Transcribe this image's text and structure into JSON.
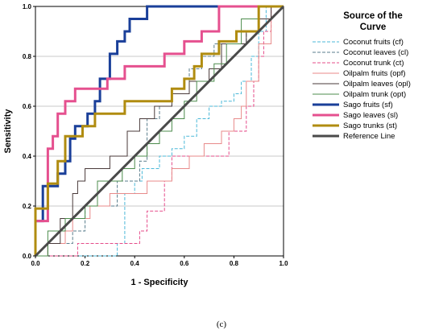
{
  "chart_data": {
    "type": "line",
    "xlabel": "1 - Specificity",
    "ylabel": "Sensitivity",
    "xlim": [
      0,
      1
    ],
    "ylim": [
      0,
      1
    ],
    "xticks": [
      "0.0",
      "0.2",
      "0.4",
      "0.6",
      "0.8",
      "1.0"
    ],
    "yticks": [
      "0.0",
      "0.2",
      "0.4",
      "0.6",
      "0.8",
      "1.0"
    ],
    "grid": "horizontal",
    "legend_title": "Source of the Curve",
    "legend_placement": "right",
    "caption": "(c)",
    "series": [
      {
        "name": "Coconut fruits (cf)",
        "color": "#4bb8d8",
        "style": "dashed",
        "width": "thin",
        "points": [
          [
            0,
            0
          ],
          [
            0.33,
            0
          ],
          [
            0.33,
            0.05
          ],
          [
            0.36,
            0.05
          ],
          [
            0.36,
            0.25
          ],
          [
            0.4,
            0.25
          ],
          [
            0.4,
            0.3
          ],
          [
            0.43,
            0.3
          ],
          [
            0.43,
            0.35
          ],
          [
            0.5,
            0.35
          ],
          [
            0.5,
            0.4
          ],
          [
            0.55,
            0.4
          ],
          [
            0.55,
            0.43
          ],
          [
            0.6,
            0.43
          ],
          [
            0.6,
            0.48
          ],
          [
            0.65,
            0.48
          ],
          [
            0.65,
            0.55
          ],
          [
            0.7,
            0.55
          ],
          [
            0.7,
            0.6
          ],
          [
            0.75,
            0.6
          ],
          [
            0.75,
            0.62
          ],
          [
            0.8,
            0.62
          ],
          [
            0.8,
            0.65
          ],
          [
            0.83,
            0.65
          ],
          [
            0.83,
            0.7
          ],
          [
            0.87,
            0.7
          ],
          [
            0.87,
            0.8
          ],
          [
            0.9,
            0.8
          ],
          [
            0.9,
            0.9
          ],
          [
            0.93,
            0.9
          ],
          [
            0.93,
            1
          ],
          [
            1,
            1
          ]
        ]
      },
      {
        "name": "Coconut leaves (cl)",
        "color": "#5a7d8c",
        "style": "dashed",
        "width": "thin",
        "points": [
          [
            0,
            0
          ],
          [
            0.05,
            0
          ],
          [
            0.05,
            0.05
          ],
          [
            0.15,
            0.05
          ],
          [
            0.15,
            0.1
          ],
          [
            0.2,
            0.1
          ],
          [
            0.2,
            0.2
          ],
          [
            0.33,
            0.2
          ],
          [
            0.33,
            0.3
          ],
          [
            0.42,
            0.3
          ],
          [
            0.42,
            0.38
          ],
          [
            0.45,
            0.38
          ],
          [
            0.45,
            0.55
          ],
          [
            0.5,
            0.55
          ],
          [
            0.5,
            0.6
          ],
          [
            0.55,
            0.6
          ],
          [
            0.55,
            0.65
          ],
          [
            0.62,
            0.65
          ],
          [
            0.62,
            0.75
          ],
          [
            0.67,
            0.75
          ],
          [
            0.67,
            0.8
          ],
          [
            0.72,
            0.8
          ],
          [
            0.72,
            0.85
          ],
          [
            0.85,
            0.85
          ],
          [
            0.85,
            0.9
          ],
          [
            0.9,
            0.9
          ],
          [
            0.9,
            0.95
          ],
          [
            0.95,
            0.95
          ],
          [
            0.95,
            1
          ],
          [
            1,
            1
          ]
        ]
      },
      {
        "name": "Coconut trunk (ct)",
        "color": "#e54c8a",
        "style": "dashed",
        "width": "thin",
        "points": [
          [
            0,
            0
          ],
          [
            0.17,
            0
          ],
          [
            0.17,
            0.05
          ],
          [
            0.42,
            0.05
          ],
          [
            0.42,
            0.1
          ],
          [
            0.45,
            0.1
          ],
          [
            0.45,
            0.18
          ],
          [
            0.52,
            0.18
          ],
          [
            0.52,
            0.3
          ],
          [
            0.55,
            0.3
          ],
          [
            0.55,
            0.4
          ],
          [
            0.78,
            0.4
          ],
          [
            0.78,
            0.5
          ],
          [
            0.85,
            0.5
          ],
          [
            0.85,
            0.6
          ],
          [
            0.88,
            0.6
          ],
          [
            0.88,
            0.7
          ],
          [
            0.9,
            0.7
          ],
          [
            0.9,
            0.8
          ],
          [
            0.92,
            0.8
          ],
          [
            0.92,
            0.9
          ],
          [
            0.95,
            0.9
          ],
          [
            0.95,
            1
          ],
          [
            1,
            1
          ]
        ]
      },
      {
        "name": "Oilpalm fruits (opf)",
        "color": "#e88a8a",
        "style": "solid",
        "width": "thin",
        "points": [
          [
            0,
            0
          ],
          [
            0.05,
            0
          ],
          [
            0.05,
            0.05
          ],
          [
            0.12,
            0.05
          ],
          [
            0.12,
            0.1
          ],
          [
            0.15,
            0.1
          ],
          [
            0.15,
            0.15
          ],
          [
            0.22,
            0.15
          ],
          [
            0.22,
            0.2
          ],
          [
            0.3,
            0.2
          ],
          [
            0.3,
            0.25
          ],
          [
            0.45,
            0.25
          ],
          [
            0.45,
            0.3
          ],
          [
            0.55,
            0.3
          ],
          [
            0.55,
            0.35
          ],
          [
            0.62,
            0.35
          ],
          [
            0.62,
            0.4
          ],
          [
            0.68,
            0.4
          ],
          [
            0.68,
            0.45
          ],
          [
            0.75,
            0.45
          ],
          [
            0.75,
            0.5
          ],
          [
            0.8,
            0.5
          ],
          [
            0.8,
            0.55
          ],
          [
            0.83,
            0.55
          ],
          [
            0.83,
            0.6
          ],
          [
            0.85,
            0.6
          ],
          [
            0.85,
            0.7
          ],
          [
            0.9,
            0.7
          ],
          [
            0.9,
            0.85
          ],
          [
            0.95,
            0.85
          ],
          [
            0.95,
            1
          ],
          [
            1,
            1
          ]
        ]
      },
      {
        "name": "Oilpalm leaves (opl)",
        "color": "#4a3a3a",
        "style": "solid",
        "width": "thin",
        "points": [
          [
            0,
            0
          ],
          [
            0.05,
            0
          ],
          [
            0.05,
            0.05
          ],
          [
            0.1,
            0.05
          ],
          [
            0.1,
            0.15
          ],
          [
            0.15,
            0.15
          ],
          [
            0.15,
            0.25
          ],
          [
            0.17,
            0.25
          ],
          [
            0.17,
            0.3
          ],
          [
            0.2,
            0.3
          ],
          [
            0.2,
            0.35
          ],
          [
            0.3,
            0.35
          ],
          [
            0.3,
            0.4
          ],
          [
            0.37,
            0.4
          ],
          [
            0.37,
            0.5
          ],
          [
            0.42,
            0.5
          ],
          [
            0.42,
            0.55
          ],
          [
            0.48,
            0.55
          ],
          [
            0.48,
            0.6
          ],
          [
            0.55,
            0.6
          ],
          [
            0.55,
            0.65
          ],
          [
            0.62,
            0.65
          ],
          [
            0.62,
            0.7
          ],
          [
            0.7,
            0.7
          ],
          [
            0.7,
            0.75
          ],
          [
            0.75,
            0.75
          ],
          [
            0.75,
            0.85
          ],
          [
            0.85,
            0.85
          ],
          [
            0.85,
            0.9
          ],
          [
            0.9,
            0.9
          ],
          [
            0.9,
            0.95
          ],
          [
            0.95,
            0.95
          ],
          [
            0.95,
            1
          ],
          [
            1,
            1
          ]
        ]
      },
      {
        "name": "Oilpalm trunk (opt)",
        "color": "#4c8c4c",
        "style": "solid",
        "width": "thin",
        "points": [
          [
            0,
            0
          ],
          [
            0.05,
            0
          ],
          [
            0.05,
            0.1
          ],
          [
            0.12,
            0.1
          ],
          [
            0.12,
            0.15
          ],
          [
            0.2,
            0.15
          ],
          [
            0.2,
            0.2
          ],
          [
            0.25,
            0.2
          ],
          [
            0.25,
            0.3
          ],
          [
            0.35,
            0.3
          ],
          [
            0.35,
            0.35
          ],
          [
            0.4,
            0.35
          ],
          [
            0.4,
            0.4
          ],
          [
            0.45,
            0.4
          ],
          [
            0.45,
            0.45
          ],
          [
            0.5,
            0.45
          ],
          [
            0.5,
            0.5
          ],
          [
            0.55,
            0.5
          ],
          [
            0.55,
            0.55
          ],
          [
            0.6,
            0.55
          ],
          [
            0.6,
            0.62
          ],
          [
            0.65,
            0.62
          ],
          [
            0.65,
            0.7
          ],
          [
            0.72,
            0.7
          ],
          [
            0.72,
            0.77
          ],
          [
            0.77,
            0.77
          ],
          [
            0.77,
            0.85
          ],
          [
            0.83,
            0.85
          ],
          [
            0.83,
            0.95
          ],
          [
            0.9,
            0.95
          ],
          [
            0.9,
            1
          ],
          [
            1,
            1
          ]
        ]
      },
      {
        "name": "Sago fruits (sf)",
        "color": "#1a3f99",
        "style": "solid",
        "width": "thick",
        "points": [
          [
            0,
            0
          ],
          [
            0,
            0.14
          ],
          [
            0.03,
            0.14
          ],
          [
            0.03,
            0.28
          ],
          [
            0.09,
            0.28
          ],
          [
            0.09,
            0.33
          ],
          [
            0.12,
            0.33
          ],
          [
            0.12,
            0.38
          ],
          [
            0.14,
            0.38
          ],
          [
            0.14,
            0.47
          ],
          [
            0.16,
            0.47
          ],
          [
            0.16,
            0.52
          ],
          [
            0.21,
            0.52
          ],
          [
            0.21,
            0.57
          ],
          [
            0.24,
            0.57
          ],
          [
            0.24,
            0.62
          ],
          [
            0.26,
            0.62
          ],
          [
            0.26,
            0.71
          ],
          [
            0.3,
            0.71
          ],
          [
            0.3,
            0.81
          ],
          [
            0.33,
            0.81
          ],
          [
            0.33,
            0.86
          ],
          [
            0.36,
            0.86
          ],
          [
            0.36,
            0.9
          ],
          [
            0.38,
            0.9
          ],
          [
            0.38,
            0.95
          ],
          [
            0.45,
            0.95
          ],
          [
            0.45,
            1
          ],
          [
            1,
            1
          ]
        ]
      },
      {
        "name": "Sago leaves (sl)",
        "color": "#e5508f",
        "style": "solid",
        "width": "thick",
        "points": [
          [
            0,
            0
          ],
          [
            0,
            0.14
          ],
          [
            0.05,
            0.14
          ],
          [
            0.05,
            0.43
          ],
          [
            0.07,
            0.43
          ],
          [
            0.07,
            0.48
          ],
          [
            0.09,
            0.48
          ],
          [
            0.09,
            0.57
          ],
          [
            0.12,
            0.57
          ],
          [
            0.12,
            0.62
          ],
          [
            0.16,
            0.62
          ],
          [
            0.16,
            0.67
          ],
          [
            0.29,
            0.67
          ],
          [
            0.29,
            0.71
          ],
          [
            0.36,
            0.71
          ],
          [
            0.36,
            0.76
          ],
          [
            0.52,
            0.76
          ],
          [
            0.52,
            0.81
          ],
          [
            0.6,
            0.81
          ],
          [
            0.6,
            0.86
          ],
          [
            0.67,
            0.86
          ],
          [
            0.67,
            0.9
          ],
          [
            0.74,
            0.9
          ],
          [
            0.74,
            1
          ],
          [
            1,
            1
          ]
        ]
      },
      {
        "name": "Sago trunks (st)",
        "color": "#b08c10",
        "style": "solid",
        "width": "thick",
        "points": [
          [
            0,
            0
          ],
          [
            0,
            0.19
          ],
          [
            0.05,
            0.19
          ],
          [
            0.05,
            0.29
          ],
          [
            0.09,
            0.29
          ],
          [
            0.09,
            0.38
          ],
          [
            0.12,
            0.38
          ],
          [
            0.12,
            0.48
          ],
          [
            0.19,
            0.48
          ],
          [
            0.19,
            0.52
          ],
          [
            0.24,
            0.52
          ],
          [
            0.24,
            0.57
          ],
          [
            0.36,
            0.57
          ],
          [
            0.36,
            0.62
          ],
          [
            0.55,
            0.62
          ],
          [
            0.55,
            0.67
          ],
          [
            0.6,
            0.67
          ],
          [
            0.6,
            0.71
          ],
          [
            0.64,
            0.71
          ],
          [
            0.64,
            0.76
          ],
          [
            0.67,
            0.76
          ],
          [
            0.67,
            0.81
          ],
          [
            0.74,
            0.81
          ],
          [
            0.74,
            0.86
          ],
          [
            0.81,
            0.86
          ],
          [
            0.81,
            0.9
          ],
          [
            0.9,
            0.9
          ],
          [
            0.9,
            1
          ],
          [
            1,
            1
          ]
        ]
      },
      {
        "name": "Reference Line",
        "color": "#4a4a4a",
        "style": "solid",
        "width": "thick",
        "points": [
          [
            0,
            0
          ],
          [
            1,
            1
          ]
        ]
      }
    ]
  }
}
